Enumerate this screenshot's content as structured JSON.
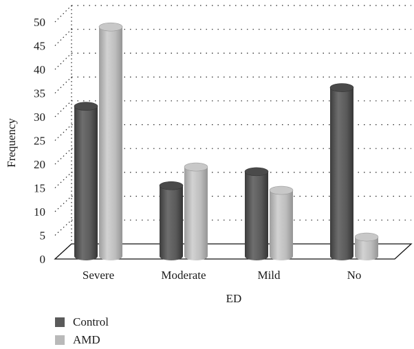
{
  "chart_data": {
    "type": "bar",
    "categories": [
      "Severe",
      "Moderate",
      "Mild",
      "No"
    ],
    "series": [
      {
        "name": "Control",
        "values": [
          33,
          16,
          19,
          37
        ],
        "color": "#5a5a5a"
      },
      {
        "name": "AMD",
        "values": [
          50,
          20,
          15,
          5
        ],
        "color": "#b9b9b9"
      }
    ],
    "xlabel": "ED",
    "ylabel": "Frequency",
    "ylim": [
      0,
      50
    ],
    "yticks": [
      0,
      5,
      10,
      15,
      20,
      25,
      30,
      35,
      40,
      45,
      50
    ],
    "grid": true,
    "legend_position": "bottom-left"
  }
}
